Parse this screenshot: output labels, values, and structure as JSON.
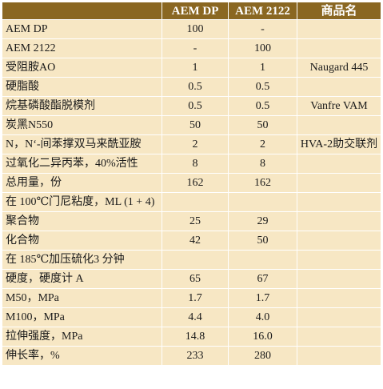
{
  "table": {
    "headers": [
      "",
      "AEM DP",
      "AEM 2122",
      "商品名"
    ],
    "rows": [
      {
        "name": "AEM DP",
        "dp": "100",
        "v2122": "-",
        "trade": ""
      },
      {
        "name": "AEM 2122",
        "dp": "-",
        "v2122": "100",
        "trade": ""
      },
      {
        "name": "受阻胺AO",
        "dp": "1",
        "v2122": "1",
        "trade": "Naugard 445"
      },
      {
        "name": "硬脂酸",
        "dp": "0.5",
        "v2122": "0.5",
        "trade": ""
      },
      {
        "name": "烷基磷酸酯脱模剂",
        "dp": "0.5",
        "v2122": "0.5",
        "trade": "Vanfre VAM"
      },
      {
        "name": "炭黑N550",
        "dp": "50",
        "v2122": "50",
        "trade": ""
      },
      {
        "name": "N，N‘-间苯撑双马来酰亚胺",
        "dp": "2",
        "v2122": "2",
        "trade": "HVA-2助交联剂"
      },
      {
        "name": "过氧化二异丙苯，40%活性",
        "dp": "8",
        "v2122": "8",
        "trade": ""
      },
      {
        "name": "总用量，份",
        "dp": "162",
        "v2122": "162",
        "trade": ""
      },
      {
        "name": "在 100℃门尼粘度，ML (1 + 4)",
        "dp": "",
        "v2122": "",
        "trade": ""
      },
      {
        "name": "聚合物",
        "dp": "25",
        "v2122": "29",
        "trade": ""
      },
      {
        "name": "化合物",
        "dp": "42",
        "v2122": "50",
        "trade": ""
      },
      {
        "name": "在 185℃加压硫化3 分钟",
        "dp": "",
        "v2122": "",
        "trade": ""
      },
      {
        "name": "硬度，硬度计 A",
        "dp": "65",
        "v2122": "67",
        "trade": ""
      },
      {
        "name": "M50，MPa",
        "dp": "1.7",
        "v2122": "1.7",
        "trade": ""
      },
      {
        "name": "M100，MPa",
        "dp": "4.4",
        "v2122": "4.0",
        "trade": ""
      },
      {
        "name": "拉伸强度，MPa",
        "dp": "14.8",
        "v2122": "16.0",
        "trade": ""
      },
      {
        "name": "伸长率，%",
        "dp": "233",
        "v2122": "280",
        "trade": ""
      }
    ]
  },
  "colors": {
    "header_bg": "#8a6722",
    "header_text": "#ffffff",
    "cell_bg": "#f7e7c4",
    "grid_line": "#ffffff"
  }
}
